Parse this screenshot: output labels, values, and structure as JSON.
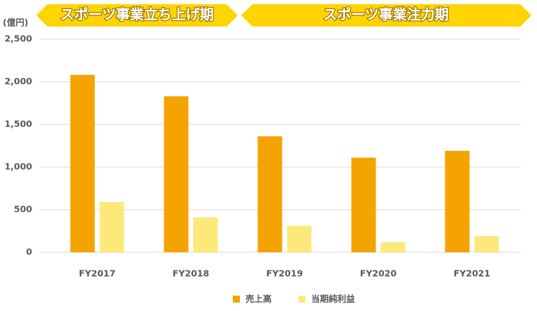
{
  "chart_data": {
    "type": "bar",
    "annotations": [
      "スポーツ事業立ち上げ期",
      "スポーツ事業注力期"
    ],
    "ylabel": "(億円)",
    "categories": [
      "FY2017",
      "FY2018",
      "FY2019",
      "FY2020",
      "FY2021"
    ],
    "series": [
      {
        "name": "売上高",
        "color": "#f5a300",
        "values": [
          2080,
          1830,
          1360,
          1110,
          1190
        ]
      },
      {
        "name": "当期純利益",
        "color": "#fce97a",
        "values": [
          590,
          410,
          310,
          120,
          190
        ]
      }
    ],
    "ylim": [
      0,
      2500
    ],
    "yticks": [
      0,
      500,
      {
        "value": 1000,
        "label": "1,000"
      },
      {
        "value": 1500,
        "label": "1,500"
      },
      {
        "value": 2000,
        "label": "2,000"
      },
      {
        "value": 2500,
        "label": "2,500"
      }
    ],
    "grid": true,
    "legend": "bottom"
  }
}
